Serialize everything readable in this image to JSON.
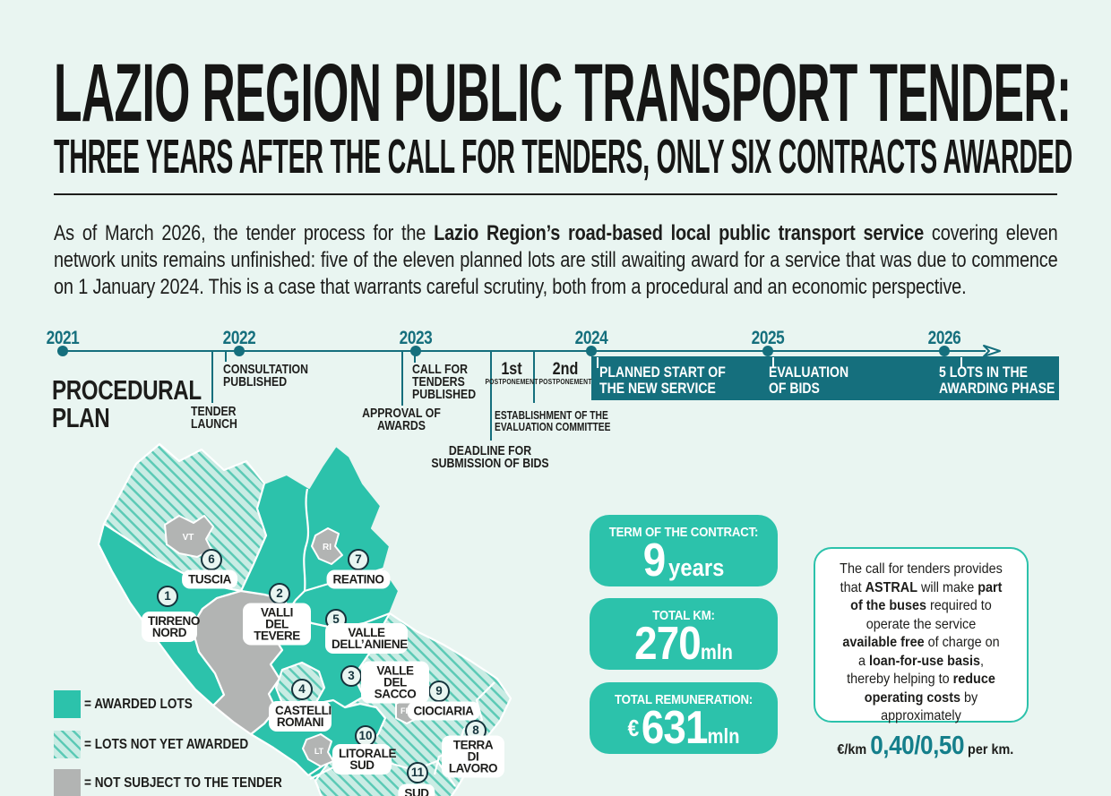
{
  "colors": {
    "background": "#e9f5f1",
    "teal_awarded": "#2cc2ab",
    "dark_teal": "#156f7d",
    "hatch_base": "#c9ece4",
    "hatch_stripe": "#5ccab6",
    "gray_excluded": "#b2b4b3",
    "ink": "#1d1d1b",
    "price_teal": "#157f8b"
  },
  "header": {
    "title": "LAZIO REGION PUBLIC TRANSPORT TENDER:",
    "subtitle": "THREE YEARS AFTER THE CALL FOR TENDERS, ONLY SIX CONTRACTS AWARDED"
  },
  "intro": {
    "segments": [
      {
        "t": "As of March 2026, the tender process for the ",
        "b": false
      },
      {
        "t": "Lazio Region’s road-based local public transport service",
        "b": true
      },
      {
        "t": " covering eleven network units remains unfinished: five of the eleven planned lots are still awaiting award for a service that was due to commence on 1 January 2024. This is a case that warrants careful scrutiny, both from a procedural and an economic perspective.",
        "b": false
      }
    ]
  },
  "timeline": {
    "section_label": "PROCEDURAL\nPLAN",
    "years": [
      "2021",
      "2022",
      "2023",
      "2024",
      "2025",
      "2026"
    ],
    "events": {
      "tender_launch": {
        "lines": [
          "TENDER",
          "LAUNCH"
        ]
      },
      "consultation": {
        "lines": [
          "CONSULTATION",
          "PUBLISHED"
        ]
      },
      "approval": {
        "lines": [
          "APPROVAL OF",
          "AWARDS"
        ]
      },
      "call_for_tenders": {
        "lines": [
          "CALL FOR",
          "TENDERS",
          "PUBLISHED"
        ]
      },
      "postponement_1": {
        "ord": "1st",
        "word": "POSTPONEMENT"
      },
      "postponement_2": {
        "ord": "2nd",
        "word": "POSTPONEMENT"
      },
      "committee": {
        "lines": [
          "ESTABLISHMENT OF THE",
          "EVALUATION COMMITTEE"
        ]
      },
      "deadline": {
        "lines": [
          "DEADLINE FOR",
          "SUBMISSION OF BIDS"
        ]
      }
    },
    "bar_events": [
      {
        "lines": [
          "PLANNED START OF",
          "THE NEW SERVICE"
        ]
      },
      {
        "lines": [
          "EVALUATION",
          "OF BIDS"
        ]
      },
      {
        "lines": [
          "5 LOTS IN THE",
          "AWARDING PHASE"
        ]
      }
    ]
  },
  "map": {
    "lots": [
      {
        "num": "1",
        "name": "TIRRENO NORD",
        "status": "awarded"
      },
      {
        "num": "2",
        "name": "VALLI DEL TEVERE",
        "status": "awarded"
      },
      {
        "num": "3",
        "name": "VALLE DEL SACCO",
        "status": "awarded"
      },
      {
        "num": "4",
        "name": "CASTELLI ROMANI",
        "status": "not_awarded"
      },
      {
        "num": "5",
        "name": "VALLE DELL’ANIENE",
        "status": "awarded"
      },
      {
        "num": "6",
        "name": "TUSCIA",
        "status": "not_awarded"
      },
      {
        "num": "7",
        "name": "REATINO",
        "status": "awarded"
      },
      {
        "num": "8",
        "name": "TERRA DI LAVORO",
        "status": "not_awarded"
      },
      {
        "num": "9",
        "name": "CIOCIARIA",
        "status": "not_awarded"
      },
      {
        "num": "10",
        "name": "LITORALE SUD",
        "status": "awarded"
      },
      {
        "num": "11",
        "name": "SUD",
        "status": "not_awarded"
      }
    ],
    "city_codes": [
      "VT",
      "RI",
      "FR",
      "LT"
    ],
    "legend": [
      {
        "label": "= AWARDED LOTS",
        "swatch": "awarded"
      },
      {
        "label": "= LOTS NOT YET AWARDED",
        "swatch": "not_awarded"
      },
      {
        "label": "= NOT SUBJECT TO THE TENDER",
        "swatch": "excluded"
      }
    ]
  },
  "stats": [
    {
      "label": "TERM OF THE CONTRACT:",
      "prefix": "",
      "value": "9",
      "unit": "years"
    },
    {
      "label": "TOTAL KM:",
      "prefix": "",
      "value": "270",
      "unit": "mln"
    },
    {
      "label": "TOTAL REMUNERATION:",
      "prefix": "€",
      "value": "631",
      "unit": "mln"
    }
  ],
  "note": {
    "segments": [
      {
        "t": "The call for tenders provides that ",
        "b": false
      },
      {
        "t": "ASTRAL",
        "b": true
      },
      {
        "t": " will make ",
        "b": false
      },
      {
        "t": "part of the buses",
        "b": true
      },
      {
        "t": " required to operate the service ",
        "b": false
      },
      {
        "t": "available free",
        "b": true
      },
      {
        "t": " of charge on a ",
        "b": false
      },
      {
        "t": "loan-for-use basis",
        "b": true
      },
      {
        "t": ", thereby helping to ",
        "b": false
      },
      {
        "t": "reduce operating costs",
        "b": true
      },
      {
        "t": " by approximately",
        "b": false
      }
    ],
    "price_prefix": "€/km ",
    "price_value": "0,40/0,50",
    "price_suffix": " per km."
  }
}
